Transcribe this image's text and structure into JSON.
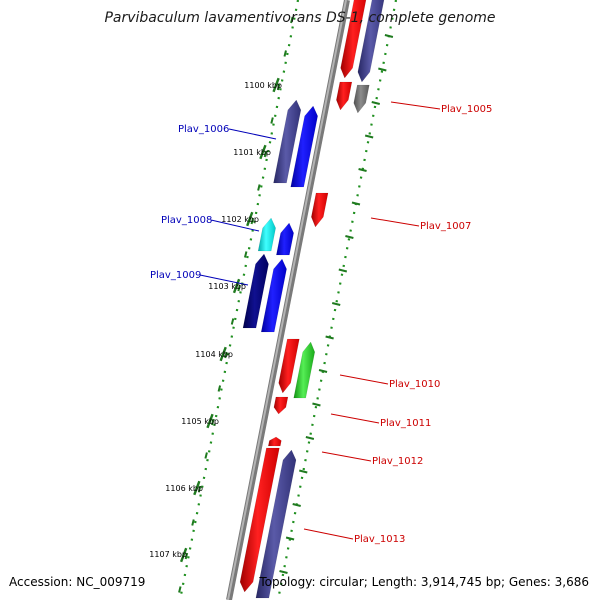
{
  "title": "Parvibaculum lavamentivorans DS-1, complete genome",
  "accession": "Accession: NC_009719",
  "summary": "Topology: circular; Length: 3,914,745 bp; Genes: 3,686",
  "kbp_ticks": [
    "1100 kbp",
    "1101 kbp",
    "1102 kbp",
    "1103 kbp",
    "1104 kbp",
    "1105 kbp",
    "1106 kbp",
    "1107 kbp"
  ],
  "genes_left": [
    {
      "label": "Plav_1006",
      "color": "#0000b8"
    },
    {
      "label": "Plav_1008",
      "color": "#0000b8"
    },
    {
      "label": "Plav_1009",
      "color": "#0000b8"
    }
  ],
  "genes_right": [
    {
      "label": "Plav_1005",
      "color": "#cc0000"
    },
    {
      "label": "Plav_1007",
      "color": "#cc0000"
    },
    {
      "label": "Plav_1010",
      "color": "#cc0000"
    },
    {
      "label": "Plav_1011",
      "color": "#cc0000"
    },
    {
      "label": "Plav_1012",
      "color": "#cc0000"
    },
    {
      "label": "Plav_1013",
      "color": "#cc0000"
    }
  ],
  "colors": {
    "backbone": "#8c8c8c",
    "dotted_ring": "#1f8f1f",
    "tick": "#1f7a1f",
    "red_gene": "#ff0000",
    "blue_gene": "#0000ff",
    "purple_gene": "#3c3c8c",
    "navy_gene": "#00006e",
    "cyan_gene": "#00dede",
    "green_gene": "#22cc22",
    "grey_gene": "#6e6e6e"
  }
}
